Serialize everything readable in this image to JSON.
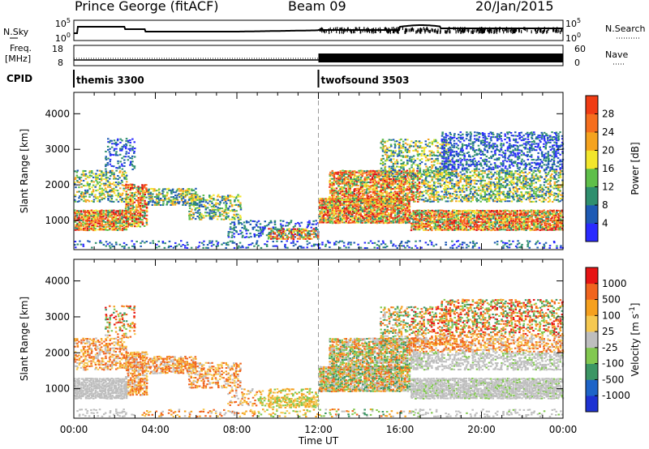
{
  "header": {
    "station": "Prince George (fitACF)",
    "beam": "Beam 09",
    "date": "20/Jan/2015"
  },
  "strip_labels": {
    "nsky": "N.Sky",
    "nsky_ticks": [
      "10^5",
      "10^0"
    ],
    "nsearch": "N.Search",
    "nsearch_ticks": [
      "10^5",
      "10^0"
    ],
    "freq": "Freq.",
    "freq_unit": "[MHz]",
    "freq_ticks": [
      "18",
      "8"
    ],
    "nave": "Nave",
    "nave_ticks": [
      "60",
      "0"
    ],
    "cpid": "CPID"
  },
  "cpid_segments": [
    {
      "name": "themis 3300",
      "start": "00:00",
      "end": "12:00"
    },
    {
      "name": "twofsound 3503",
      "start": "12:00",
      "end": "24:00"
    }
  ],
  "colors": {
    "power": [
      "#2a2aff",
      "#1e5ab4",
      "#2f8f6e",
      "#5fbf4a",
      "#f2e62c",
      "#f5a31e",
      "#f56e1e",
      "#f03c14",
      "#dc1414"
    ],
    "velocity": [
      "#e61414",
      "#f0641e",
      "#f5a01e",
      "#f5c850",
      "#bebebe",
      "#82c850",
      "#3c9664",
      "#1e64c8",
      "#1e32d2"
    ]
  },
  "chart_data": [
    {
      "type": "heatmap",
      "xlabel": "",
      "ylabel": "Slant Range [km]",
      "xlim_hours": [
        0,
        24
      ],
      "ylim_km": [
        180,
        4600
      ],
      "y_ticks": [
        "1000",
        "2000",
        "3000",
        "4000"
      ],
      "colorbar_label": "Power [dB]",
      "colorbar_ticks": [
        "4",
        "8",
        "12",
        "16",
        "20",
        "24",
        "28"
      ],
      "colorbar_range": [
        0,
        32
      ]
    },
    {
      "type": "heatmap",
      "xlabel": "Time UT",
      "ylabel": "Slant Range [km]",
      "xlim_hours": [
        0,
        24
      ],
      "ylim_km": [
        180,
        4600
      ],
      "x_ticks": [
        "00:00",
        "04:00",
        "08:00",
        "12:00",
        "16:00",
        "20:00",
        "00:00"
      ],
      "y_ticks": [
        "1000",
        "2000",
        "3000",
        "4000"
      ],
      "colorbar_label": "Velocity [m s^-1]",
      "colorbar_ticks": [
        "1000",
        "500",
        "100",
        "25",
        "-25",
        "-100",
        "-500",
        "-1000"
      ]
    }
  ]
}
